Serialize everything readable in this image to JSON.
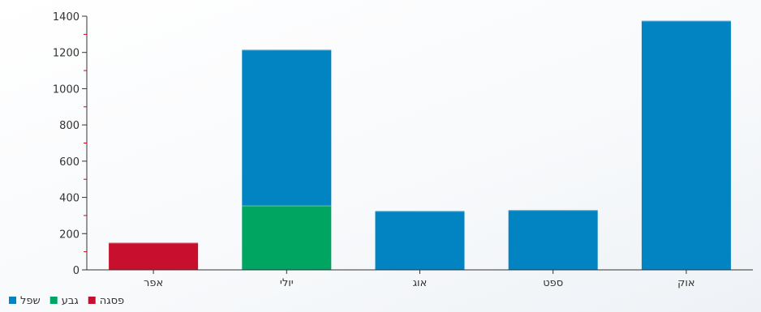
{
  "chart_data": {
    "type": "bar",
    "stacked": true,
    "categories": [
      "אפר",
      "יולי",
      "אוג",
      "ספט",
      "אוק"
    ],
    "series": [
      {
        "name": "פסגה",
        "color": "#c8102e",
        "values": [
          150,
          0,
          0,
          0,
          0
        ]
      },
      {
        "name": "גבע",
        "color": "#00a562",
        "values": [
          0,
          355,
          0,
          0,
          0
        ]
      },
      {
        "name": "שפל",
        "color": "#0284c3",
        "values": [
          0,
          860,
          325,
          330,
          1375
        ]
      }
    ],
    "yticks": [
      0,
      200,
      400,
      600,
      800,
      1000,
      1200,
      1400
    ],
    "ylim": [
      0,
      1400
    ],
    "grid": false,
    "legend_position": "bottom-left",
    "legend_order": [
      "שפל",
      "גבע",
      "פסגה"
    ]
  }
}
